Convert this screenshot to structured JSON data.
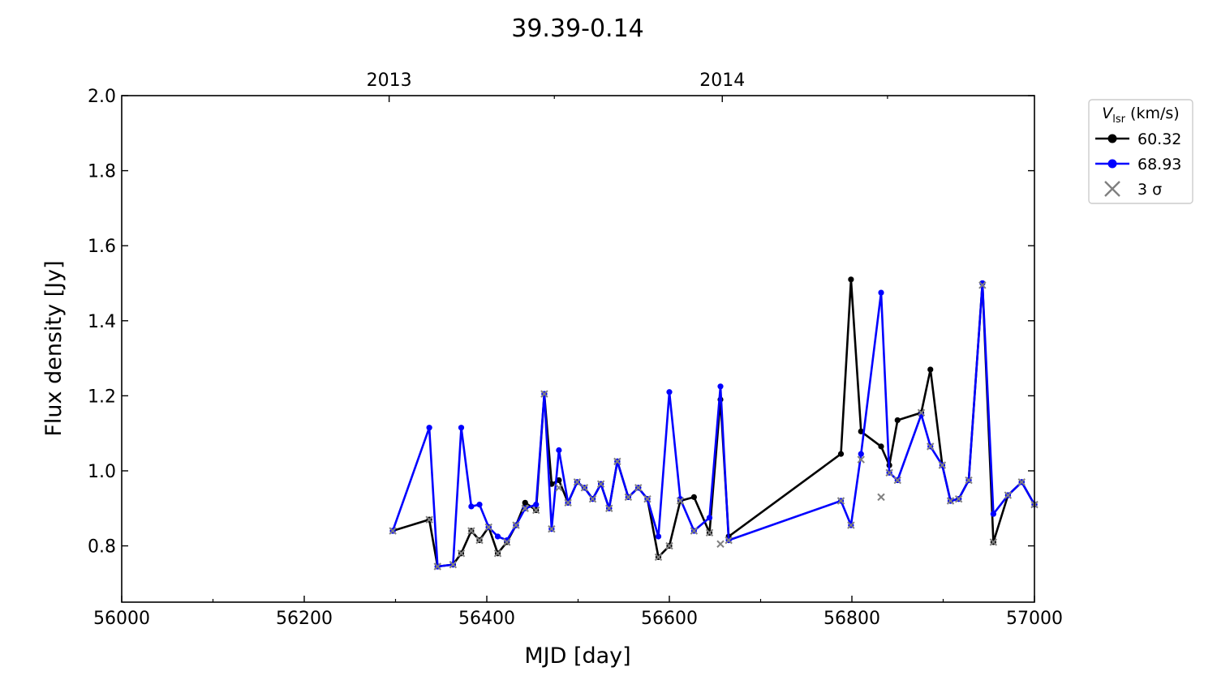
{
  "chart_data": {
    "type": "line",
    "title": "39.39-0.14",
    "xlabel": "MJD [day]",
    "ylabel": "Flux density [Jy]",
    "xlim": [
      56000,
      57000
    ],
    "ylim": [
      0.65,
      2.0
    ],
    "x_ticks": [
      56000,
      56200,
      56400,
      56600,
      56800,
      57000
    ],
    "x_tick_labels": [
      "56000",
      "56200",
      "56400",
      "56600",
      "56800",
      "57000"
    ],
    "y_ticks": [
      0.8,
      1.0,
      1.2,
      1.4,
      1.6,
      1.8,
      2.0
    ],
    "y_tick_labels": [
      "0.8",
      "1.0",
      "1.2",
      "1.4",
      "1.6",
      "1.8",
      "2.0"
    ],
    "top_axis": {
      "ticks": [
        56293,
        56658
      ],
      "labels": [
        "2013",
        "2014"
      ],
      "minor_ticks": [
        56474,
        56839
      ]
    },
    "grid": false,
    "legend": {
      "title_main": "V",
      "title_sub": "lsr",
      "title_unit": " (km/s)",
      "placement": "outside-top-right",
      "entries": [
        {
          "label": "60.32",
          "color": "#000000",
          "marker": "line-dot"
        },
        {
          "label": "68.93",
          "color": "#0000ff",
          "marker": "line-dot"
        },
        {
          "label": "3 σ",
          "color": "#808080",
          "marker": "x"
        }
      ]
    },
    "series": [
      {
        "name": "60.32",
        "color": "#000000",
        "x": [
          56297,
          56337,
          56346,
          56363,
          56372,
          56383,
          56392,
          56402,
          56412,
          56422,
          56432,
          56442,
          56454,
          56463,
          56471,
          56479,
          56489,
          56499,
          56507,
          56516,
          56525,
          56534,
          56543,
          56555,
          56566,
          56576,
          56588,
          56600,
          56612,
          56627,
          56644,
          56656,
          56665,
          56788,
          56799,
          56810,
          56832,
          56841,
          56850,
          56876,
          56886,
          56899,
          56908,
          56917,
          56928,
          56943,
          56955,
          56971,
          56986,
          57000
        ],
        "y": [
          0.84,
          0.87,
          0.745,
          0.75,
          0.78,
          0.84,
          0.815,
          0.85,
          0.78,
          0.81,
          0.855,
          0.915,
          0.895,
          1.205,
          0.965,
          0.975,
          0.915,
          0.97,
          0.955,
          0.925,
          0.965,
          0.9,
          1.025,
          0.93,
          0.955,
          0.925,
          0.77,
          0.8,
          0.92,
          0.93,
          0.835,
          1.19,
          0.825,
          1.045,
          1.51,
          1.105,
          1.065,
          1.015,
          1.135,
          1.155,
          1.27,
          1.015,
          0.92,
          0.925,
          0.975,
          1.5,
          0.81,
          0.935,
          0.97,
          0.91
        ]
      },
      {
        "name": "68.93",
        "color": "#0000ff",
        "x": [
          56297,
          56337,
          56346,
          56363,
          56372,
          56383,
          56392,
          56402,
          56412,
          56422,
          56432,
          56442,
          56454,
          56463,
          56471,
          56479,
          56489,
          56499,
          56507,
          56516,
          56525,
          56534,
          56543,
          56555,
          56566,
          56576,
          56588,
          56600,
          56612,
          56627,
          56644,
          56656,
          56665,
          56788,
          56799,
          56810,
          56832,
          56841,
          56850,
          56876,
          56886,
          56899,
          56908,
          56917,
          56928,
          56943,
          56955,
          56971,
          56986,
          57000
        ],
        "y": [
          0.84,
          1.115,
          0.745,
          0.75,
          1.115,
          0.905,
          0.91,
          0.85,
          0.825,
          0.815,
          0.855,
          0.9,
          0.91,
          1.205,
          0.845,
          1.055,
          0.915,
          0.97,
          0.955,
          0.925,
          0.965,
          0.9,
          1.025,
          0.93,
          0.955,
          0.925,
          0.825,
          1.21,
          0.925,
          0.84,
          0.875,
          1.225,
          0.815,
          0.92,
          0.855,
          1.045,
          1.475,
          0.995,
          0.975,
          1.15,
          1.065,
          1.015,
          0.92,
          0.925,
          0.975,
          1.5,
          0.885,
          0.935,
          0.97,
          0.91
        ]
      },
      {
        "name": "3 σ",
        "color": "#808080",
        "x": [
          56297,
          56337,
          56346,
          56363,
          56372,
          56383,
          56392,
          56402,
          56412,
          56422,
          56432,
          56442,
          56454,
          56463,
          56471,
          56479,
          56489,
          56499,
          56507,
          56516,
          56525,
          56534,
          56543,
          56555,
          56566,
          56576,
          56588,
          56600,
          56612,
          56627,
          56644,
          56656,
          56665,
          56788,
          56799,
          56810,
          56832,
          56841,
          56850,
          56876,
          56886,
          56899,
          56908,
          56917,
          56928,
          56943,
          56955,
          56971,
          56986,
          57000
        ],
        "y": [
          0.84,
          0.87,
          0.745,
          0.75,
          0.78,
          0.84,
          0.815,
          0.85,
          0.78,
          0.81,
          0.855,
          0.9,
          0.895,
          1.205,
          0.845,
          0.955,
          0.915,
          0.97,
          0.955,
          0.925,
          0.965,
          0.9,
          1.025,
          0.93,
          0.955,
          0.925,
          0.77,
          0.8,
          0.92,
          0.84,
          0.835,
          0.805,
          0.815,
          0.92,
          0.855,
          1.03,
          0.93,
          0.995,
          0.975,
          1.155,
          1.065,
          1.015,
          0.92,
          0.925,
          0.975,
          1.495,
          0.81,
          0.935,
          0.97,
          0.91
        ]
      }
    ]
  }
}
